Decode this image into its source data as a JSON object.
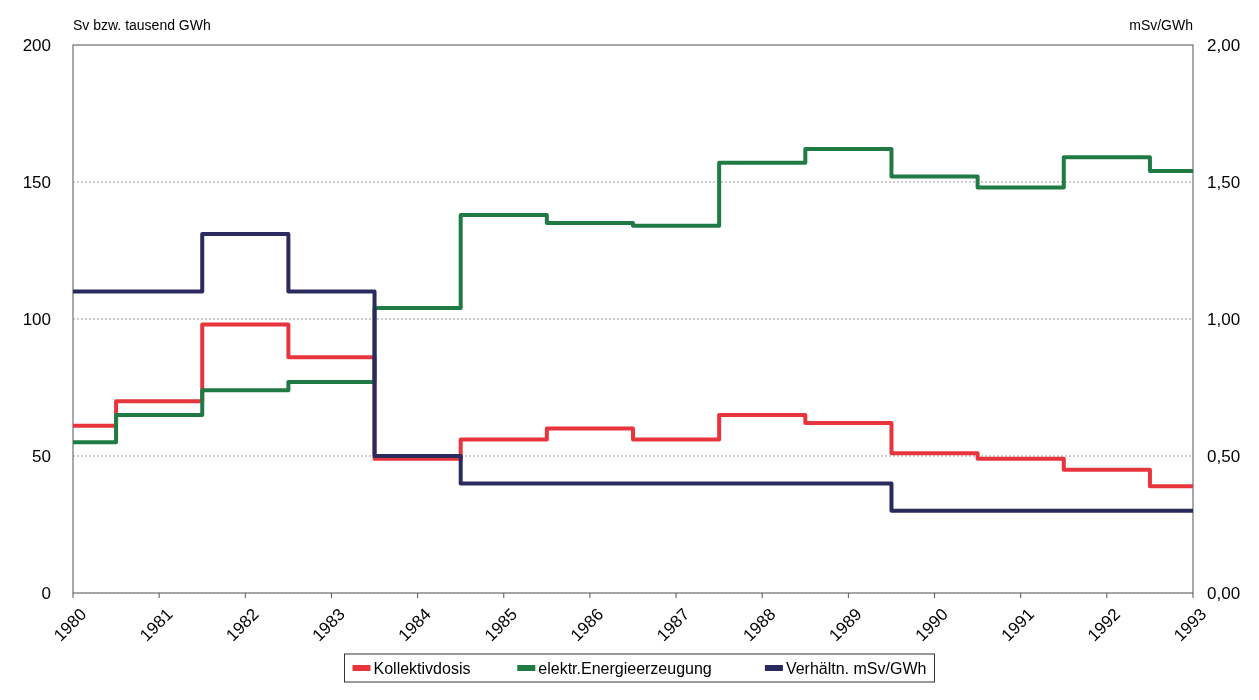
{
  "chart_data": {
    "type": "step",
    "ylabel": "Sv bzw. tausend GWh",
    "y2label": "mSv/GWh",
    "x": [
      1980,
      1981,
      1982,
      1983,
      1984,
      1985,
      1986,
      1987,
      1988,
      1989,
      1990,
      1991,
      1992,
      1993
    ],
    "xlim": [
      1980,
      1993
    ],
    "xticks": [
      1980,
      1981,
      1982,
      1983,
      1984,
      1985,
      1986,
      1987,
      1988,
      1989,
      1990,
      1991,
      1992,
      1993
    ],
    "ylim": [
      0,
      200
    ],
    "yticks": [
      0,
      50,
      100,
      150,
      200
    ],
    "y2lim": [
      0,
      2
    ],
    "y2ticks": [
      {
        "value": 0,
        "label": "0,00"
      },
      {
        "value": 0.5,
        "label": "0,50"
      },
      {
        "value": 1,
        "label": "1,00"
      },
      {
        "value": 1.5,
        "label": "1,50"
      },
      {
        "value": 2,
        "label": "2,00"
      }
    ],
    "grid": "y",
    "legend": "bottom",
    "series": [
      {
        "name": "Kollektivdosis",
        "color": "#e8343c",
        "values": [
          61,
          70,
          98,
          86,
          49,
          56,
          60,
          56,
          65,
          62,
          51,
          49,
          45,
          39
        ]
      },
      {
        "name": "elektr.Energieerzeugung",
        "color": "#1f7a44",
        "values": [
          55,
          65,
          74,
          77,
          104,
          138,
          135,
          134,
          157,
          162,
          152,
          148,
          159,
          154
        ]
      },
      {
        "name": "Verhältn. mSv/GWh",
        "color": "#2a2a5e",
        "axis": "y2",
        "values": [
          1.1,
          1.1,
          1.31,
          1.1,
          0.5,
          0.4,
          0.4,
          0.4,
          0.4,
          0.4,
          0.3,
          0.3,
          0.3,
          0.3
        ]
      }
    ]
  }
}
